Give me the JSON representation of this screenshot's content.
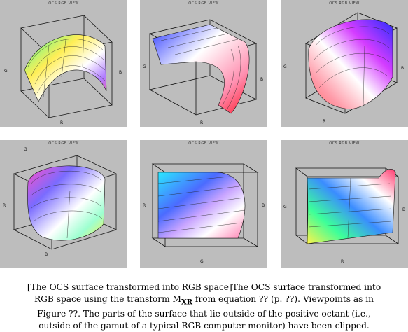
{
  "panels": [
    {
      "title": "OCS RGB VIEW",
      "axis_labels": [
        "G",
        "R",
        "B"
      ]
    },
    {
      "title": "OCS RGB VIEW",
      "axis_labels": [
        "G",
        "R",
        "B"
      ]
    },
    {
      "title": "OCS RGB VIEW",
      "axis_labels": [
        "G",
        "R",
        "B"
      ]
    },
    {
      "title": "OCS RGB VIEW",
      "axis_labels": [
        "G",
        "R",
        "B"
      ]
    },
    {
      "title": "OCS RGB VIEW",
      "axis_labels": [
        "G",
        "R",
        "B"
      ]
    },
    {
      "title": "OCS RGB VIEW",
      "axis_labels": [
        "G",
        "R",
        "B"
      ]
    }
  ],
  "caption": {
    "line1": "[The OCS surface transformed into RGB space]The OCS surface transformed into",
    "line2_a": "RGB space using the transform M",
    "line2_sub": "XR",
    "line2_b": " from equation ?? (p. ??). Viewpoints as in",
    "line3": "Figure ??. The parts of the surface that lie outside of the positive octant (i.e.,",
    "line4": "outside of the gamut of a typical RGB computer monitor) have been clipped."
  },
  "colors": {
    "panel_bg": "#bdbdbd",
    "page_bg": "#ffffff",
    "wireframe": "#111111"
  }
}
